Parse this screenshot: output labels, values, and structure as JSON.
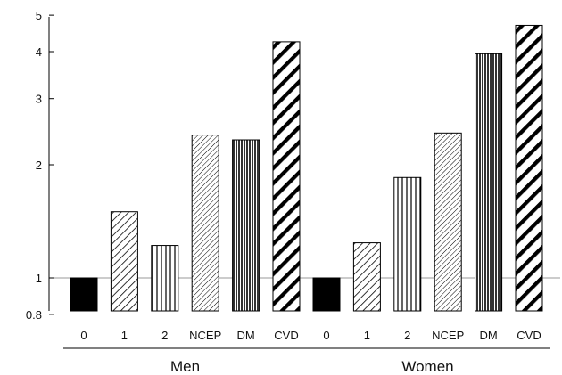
{
  "chart_data": {
    "type": "bar",
    "yscale": "log",
    "ylim": [
      0.8,
      5
    ],
    "yticks": [
      0.8,
      1,
      2,
      3,
      4,
      5
    ],
    "reference_line": 1,
    "categories": [
      "0",
      "1",
      "2",
      "NCEP",
      "DM",
      "CVD"
    ],
    "groups": [
      {
        "name": "Men",
        "values": [
          1.0,
          1.5,
          1.22,
          2.4,
          2.33,
          4.25
        ]
      },
      {
        "name": "Women",
        "values": [
          1.0,
          1.24,
          1.85,
          2.43,
          3.95,
          4.7
        ]
      }
    ],
    "bar_patterns": [
      "solid-black",
      "diagonal-dense",
      "vertical-sparse",
      "diagonal-fine",
      "vertical-dense",
      "diagonal-bold"
    ]
  }
}
